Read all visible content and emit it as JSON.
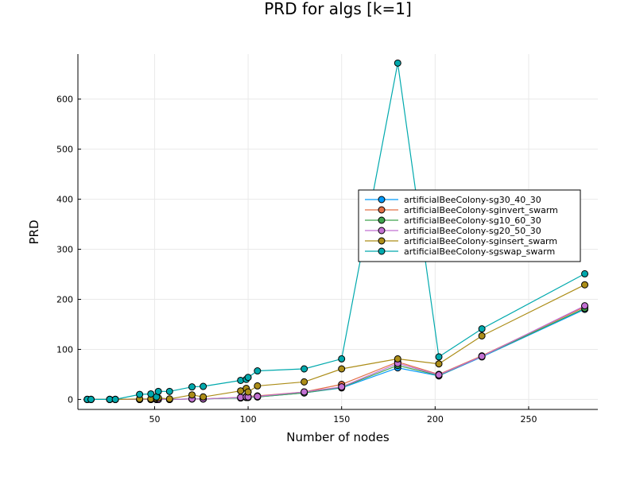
{
  "chart_data": {
    "type": "line",
    "title": "PRD for algs [k=1]",
    "xlabel": "Number of nodes",
    "ylabel": "PRD",
    "xlim": [
      9,
      287
    ],
    "ylim": [
      -20,
      690
    ],
    "xticks": [
      50,
      100,
      150,
      200,
      250
    ],
    "yticks": [
      0,
      100,
      200,
      300,
      400,
      500,
      600
    ],
    "grid": true,
    "legend_position": "right",
    "x": [
      14,
      16,
      26,
      29,
      42,
      48,
      51,
      52,
      58,
      70,
      76,
      96,
      99,
      100,
      105,
      130,
      150,
      180,
      202,
      225,
      280
    ],
    "series": [
      {
        "name": "artificialBeeColony-sg30_40_30",
        "color": "#009AFA",
        "values": [
          0,
          0,
          0,
          0,
          0,
          0,
          0,
          0,
          0,
          1,
          1,
          3,
          4,
          4,
          5,
          13,
          23,
          63,
          47,
          85,
          180
        ]
      },
      {
        "name": "artificialBeeColony-sginvert_swarm",
        "color": "#E26F46",
        "values": [
          0,
          0,
          0,
          0,
          0,
          0,
          0,
          0,
          0,
          1,
          1,
          4,
          6,
          6,
          7,
          15,
          30,
          75,
          50,
          87,
          185
        ]
      },
      {
        "name": "artificialBeeColony-sg10_60_30",
        "color": "#3EA44E",
        "values": [
          0,
          0,
          0,
          0,
          0,
          0,
          0,
          0,
          0,
          1,
          1,
          3,
          4,
          4,
          5,
          13,
          24,
          68,
          48,
          86,
          182
        ]
      },
      {
        "name": "artificialBeeColony-sg20_50_30",
        "color": "#C271D2",
        "values": [
          0,
          0,
          0,
          0,
          0,
          0,
          0,
          0,
          0,
          1,
          1,
          4,
          5,
          5,
          6,
          15,
          25,
          72,
          49,
          86,
          187
        ]
      },
      {
        "name": "artificialBeeColony-sginsert_swarm",
        "color": "#AC8D18",
        "values": [
          0,
          0,
          0,
          0,
          1,
          1,
          2,
          3,
          1,
          9,
          5,
          17,
          22,
          15,
          27,
          35,
          61,
          81,
          71,
          127,
          229
        ]
      },
      {
        "name": "artificialBeeColony-sgswap_swarm",
        "color": "#00A9AD",
        "values": [
          0,
          0,
          0,
          0,
          10,
          11,
          5,
          16,
          16,
          25,
          26,
          38,
          40,
          44,
          57,
          61,
          81,
          672,
          85,
          141,
          251
        ]
      }
    ]
  }
}
